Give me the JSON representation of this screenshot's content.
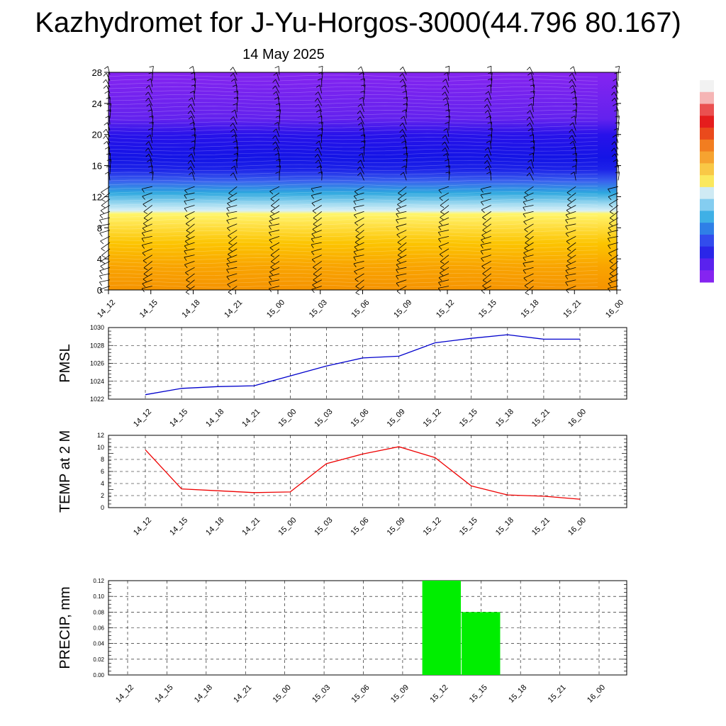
{
  "header": {
    "title": "Kazhydromet for J-Yu-Horgos-3000(44.796 80.167)",
    "date": "14 May 2025"
  },
  "time_labels": [
    "14_12",
    "14_15",
    "14_18",
    "14_21",
    "15_00",
    "15_03",
    "15_06",
    "15_09",
    "15_12",
    "15_15",
    "15_18",
    "15_21",
    "16_00"
  ],
  "chart_data": [
    {
      "type": "heatmap",
      "name": "cross-section",
      "x": [
        "14_12",
        "14_15",
        "14_18",
        "14_21",
        "15_00",
        "15_03",
        "15_06",
        "15_09",
        "15_12",
        "15_15",
        "15_18",
        "15_21",
        "16_00"
      ],
      "ylim": [
        0,
        28
      ],
      "yticks": [
        0,
        4,
        8,
        12,
        16,
        20,
        24,
        28
      ],
      "color_stops": [
        {
          "y": 0,
          "color": "#f59300"
        },
        {
          "y": 3,
          "color": "#f9a400"
        },
        {
          "y": 6,
          "color": "#fcc400"
        },
        {
          "y": 8.5,
          "color": "#ffe34a"
        },
        {
          "y": 9.8,
          "color": "#fff66a"
        },
        {
          "y": 10.2,
          "color": "#d6eff6"
        },
        {
          "y": 11,
          "color": "#a4dcf1"
        },
        {
          "y": 12.5,
          "color": "#2ea8df"
        },
        {
          "y": 14,
          "color": "#3a62ee"
        },
        {
          "y": 15.5,
          "color": "#1c22e8"
        },
        {
          "y": 17,
          "color": "#1414e6"
        },
        {
          "y": 20,
          "color": "#2812ea"
        },
        {
          "y": 22,
          "color": "#6322ee"
        },
        {
          "y": 28,
          "color": "#8524f0"
        }
      ],
      "colorbar": [
        "#f2f2f2",
        "#f5b5b5",
        "#ea5050",
        "#e51d1d",
        "#ea4a1c",
        "#f27d20",
        "#f6a330",
        "#f9c846",
        "#fbe85e",
        "#cfeaf4",
        "#84cdf0",
        "#3fb0e6",
        "#2f7fe7",
        "#324ced",
        "#2a26e8",
        "#5a22ee",
        "#8524f0"
      ],
      "wind_barbs": true
    },
    {
      "type": "line",
      "name": "PMSL",
      "ylabel": "PMSL",
      "x": [
        "14_12",
        "14_15",
        "14_18",
        "14_21",
        "15_00",
        "15_03",
        "15_06",
        "15_09",
        "15_12",
        "15_15",
        "15_18",
        "15_21",
        "16_00"
      ],
      "ylim": [
        1022,
        1030
      ],
      "yticks": [
        1022,
        1024,
        1026,
        1028,
        1030
      ],
      "series": [
        {
          "values": [
            1022.5,
            1023.2,
            1023.4,
            1023.5,
            1024.6,
            1025.7,
            1026.6,
            1026.8,
            1028.3,
            1028.8,
            1029.2,
            1028.7,
            1028.7
          ],
          "color": "#0000cc"
        }
      ]
    },
    {
      "type": "line",
      "name": "TEMP",
      "ylabel": "TEMP at 2 M",
      "x": [
        "14_12",
        "14_15",
        "14_18",
        "14_21",
        "15_00",
        "15_03",
        "15_06",
        "15_09",
        "15_12",
        "15_15",
        "15_18",
        "15_21",
        "16_00"
      ],
      "ylim": [
        0,
        12
      ],
      "yticks": [
        0,
        2,
        4,
        6,
        8,
        10,
        12
      ],
      "series": [
        {
          "values": [
            9.6,
            3.1,
            2.8,
            2.5,
            2.6,
            7.3,
            8.9,
            10.1,
            8.3,
            3.6,
            2.1,
            1.9,
            1.4
          ],
          "color": "#ee0000"
        }
      ]
    },
    {
      "type": "bar",
      "name": "PRECIP",
      "ylabel": "PRECIP, mm",
      "categories": [
        "14_12",
        "14_15",
        "14_18",
        "14_21",
        "15_00",
        "15_03",
        "15_06",
        "15_09",
        "15_12",
        "15_15",
        "15_18",
        "15_21",
        "16_00"
      ],
      "ylim": [
        0,
        0.12
      ],
      "yticks": [
        "0.00",
        "0.02",
        "0.04",
        "0.06",
        "0.08",
        "0.10",
        "0.12"
      ],
      "values": [
        0,
        0,
        0,
        0,
        0,
        0,
        0,
        0,
        0.12,
        0.08,
        0,
        0,
        0
      ],
      "color": "#00ee00"
    }
  ]
}
